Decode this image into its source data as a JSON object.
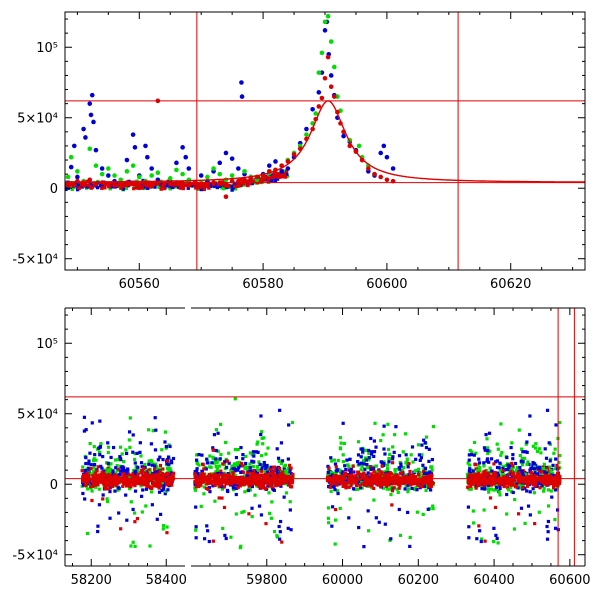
{
  "colors": {
    "blue": "#0000dd",
    "green": "#00dd00",
    "red": "#dd0000",
    "line": "#e00000"
  },
  "chart_data": [
    {
      "type": "scatter",
      "title": "",
      "xlabel": "",
      "ylabel": "",
      "xlim": [
        60548,
        60632
      ],
      "ylim": [
        -58000,
        125000
      ],
      "x_ticks": [
        {
          "value": 60560,
          "label": "60560"
        },
        {
          "value": 60580,
          "label": "60580"
        },
        {
          "value": 60600,
          "label": "60600"
        },
        {
          "value": 60620,
          "label": "60620"
        }
      ],
      "y_ticks": [
        {
          "value": -50000,
          "label": "-5×10⁴"
        },
        {
          "value": 0,
          "label": "0"
        },
        {
          "value": 50000,
          "label": "5×10⁴"
        },
        {
          "value": 100000,
          "label": "10⁵"
        }
      ],
      "ref_lines": {
        "vertical": [
          60569.3,
          60611.5
        ],
        "horizontal": [
          4000,
          62000
        ]
      },
      "fit_curve": {
        "peak_x": 60590.5,
        "peak_y": 62000,
        "baseline": 4000,
        "width": 3.5
      },
      "series": [
        {
          "color": "blue",
          "points": [
            [
              60549,
              15000
            ],
            [
              60549.5,
              30000
            ],
            [
              60550,
              8000
            ],
            [
              60551,
              42000
            ],
            [
              60551.3,
              36000
            ],
            [
              60552,
              60000
            ],
            [
              60552.2,
              52000
            ],
            [
              60552.4,
              66000
            ],
            [
              60552.6,
              47000
            ],
            [
              60553,
              27000
            ],
            [
              60554,
              14000
            ],
            [
              60555,
              9000
            ],
            [
              60556,
              5000
            ],
            [
              60558,
              20000
            ],
            [
              60559,
              38000
            ],
            [
              60559.3,
              29000
            ],
            [
              60560,
              9000
            ],
            [
              60561,
              30000
            ],
            [
              60561.3,
              22000
            ],
            [
              60562,
              14000
            ],
            [
              60563,
              6000
            ],
            [
              60565,
              5000
            ],
            [
              60566,
              18000
            ],
            [
              60567,
              29000
            ],
            [
              60567.5,
              22000
            ],
            [
              60568,
              14000
            ],
            [
              60570,
              9000
            ],
            [
              60571,
              5000
            ],
            [
              60572,
              12000
            ],
            [
              60573,
              18000
            ],
            [
              60574,
              25000
            ],
            [
              60575,
              21000
            ],
            [
              60576,
              14000
            ],
            [
              60576.5,
              75000
            ],
            [
              60576.6,
              65000
            ],
            [
              60577,
              10000
            ],
            [
              60578,
              8000
            ],
            [
              60579,
              7000
            ],
            [
              60580,
              10000
            ],
            [
              60581,
              16000
            ],
            [
              60582,
              19000
            ],
            [
              60583,
              12000
            ],
            [
              60584,
              14000
            ],
            [
              60585,
              22000
            ],
            [
              60586,
              32000
            ],
            [
              60587,
              42000
            ],
            [
              60588,
              56000
            ],
            [
              60589,
              68000
            ],
            [
              60589.5,
              82000
            ],
            [
              60590,
              112000
            ],
            [
              60590.3,
              118000
            ],
            [
              60590.6,
              95000
            ],
            [
              60591,
              80000
            ],
            [
              60591.5,
              66000
            ],
            [
              60592,
              50000
            ],
            [
              60593,
              37000
            ],
            [
              60594,
              33000
            ],
            [
              60595,
              27000
            ],
            [
              60596,
              20000
            ],
            [
              60597,
              12000
            ],
            [
              60598,
              9000
            ],
            [
              60599,
              25000
            ],
            [
              60599.5,
              30000
            ],
            [
              60600,
              22000
            ],
            [
              60601,
              14000
            ]
          ]
        },
        {
          "color": "green",
          "points": [
            [
              60548.5,
              8000
            ],
            [
              60549,
              22000
            ],
            [
              60550,
              12000
            ],
            [
              60551,
              5000
            ],
            [
              60552,
              28000
            ],
            [
              60553,
              16000
            ],
            [
              60554,
              10000
            ],
            [
              60555,
              14000
            ],
            [
              60556,
              9000
            ],
            [
              60557,
              6000
            ],
            [
              60558,
              12000
            ],
            [
              60559,
              16000
            ],
            [
              60560,
              8000
            ],
            [
              60561,
              5000
            ],
            [
              60562,
              9000
            ],
            [
              60563,
              11000
            ],
            [
              60565,
              7000
            ],
            [
              60566,
              13000
            ],
            [
              60567,
              10000
            ],
            [
              60568,
              6000
            ],
            [
              60570,
              4000
            ],
            [
              60571,
              8000
            ],
            [
              60572,
              14000
            ],
            [
              60573,
              10000
            ],
            [
              60574,
              6000
            ],
            [
              60575,
              9000
            ],
            [
              60577,
              12000
            ],
            [
              60578,
              8000
            ],
            [
              60579,
              6000
            ],
            [
              60580,
              9000
            ],
            [
              60581,
              11000
            ],
            [
              60582,
              13000
            ],
            [
              60583,
              16000
            ],
            [
              60584,
              20000
            ],
            [
              60585,
              25000
            ],
            [
              60586,
              30000
            ],
            [
              60587,
              38000
            ],
            [
              60588,
              46000
            ],
            [
              60588.5,
              53000
            ],
            [
              60589,
              82000
            ],
            [
              60589.5,
              96000
            ],
            [
              60590,
              118000
            ],
            [
              60590.5,
              122000
            ],
            [
              60591,
              104000
            ],
            [
              60591.5,
              86000
            ],
            [
              60592,
              65000
            ],
            [
              60592.5,
              55000
            ],
            [
              60593,
              40000
            ],
            [
              60594,
              34000
            ],
            [
              60595,
              26000
            ],
            [
              60595.5,
              30000
            ],
            [
              60596,
              22000
            ],
            [
              60597,
              16000
            ],
            [
              60598,
              10000
            ]
          ]
        },
        {
          "color": "red",
          "points": [
            [
              60548.5,
              2000
            ],
            [
              60549,
              3000
            ],
            [
              60550,
              5000
            ],
            [
              60551,
              4000
            ],
            [
              60552,
              6000
            ],
            [
              60553,
              3000
            ],
            [
              60554,
              4000
            ],
            [
              60555,
              3000
            ],
            [
              60556,
              2000
            ],
            [
              60557,
              3000
            ],
            [
              60558,
              4000
            ],
            [
              60559,
              3000
            ],
            [
              60560,
              2000
            ],
            [
              60561,
              4000
            ],
            [
              60562,
              3000
            ],
            [
              60563,
              62000
            ],
            [
              60564,
              3000
            ],
            [
              60565,
              3000
            ],
            [
              60566,
              4000
            ],
            [
              60567,
              3000
            ],
            [
              60568,
              2000
            ],
            [
              60569,
              4000
            ],
            [
              60570,
              3000
            ],
            [
              60571,
              3000
            ],
            [
              60572,
              4000
            ],
            [
              60573,
              4000
            ],
            [
              60574,
              -6000
            ],
            [
              60575,
              5000
            ],
            [
              60576,
              5000
            ],
            [
              60577,
              6000
            ],
            [
              60578,
              7000
            ],
            [
              60579,
              8000
            ],
            [
              60580,
              9000
            ],
            [
              60581,
              12000
            ],
            [
              60582,
              13000
            ],
            [
              60583,
              16000
            ],
            [
              60584,
              19000
            ],
            [
              60585,
              24000
            ],
            [
              60586,
              28000
            ],
            [
              60587,
              35000
            ],
            [
              60588,
              42000
            ],
            [
              60588.5,
              49000
            ],
            [
              60589,
              58000
            ],
            [
              60589.5,
              64000
            ],
            [
              60590,
              78000
            ],
            [
              60590.5,
              93000
            ],
            [
              60591,
              72000
            ],
            [
              60591.5,
              65000
            ],
            [
              60592,
              54000
            ],
            [
              60592.5,
              46000
            ],
            [
              60593,
              40000
            ],
            [
              60594,
              30000
            ],
            [
              60595,
              26000
            ],
            [
              60596,
              20000
            ],
            [
              60597,
              14000
            ],
            [
              60598,
              10000
            ],
            [
              60599,
              8000
            ],
            [
              60600,
              6000
            ],
            [
              60601,
              5000
            ]
          ]
        }
      ]
    },
    {
      "type": "scatter",
      "title": "",
      "xlabel": "",
      "ylabel": "",
      "xlim": [
        58130,
        60640
      ],
      "ylim": [
        -58000,
        125000
      ],
      "x_ticks": [
        {
          "value": 58200,
          "label": "58200"
        },
        {
          "value": 58400,
          "label": "58400"
        },
        {
          "value": 59800,
          "label": "59800"
        },
        {
          "value": 60000,
          "label": "60000"
        },
        {
          "value": 60200,
          "label": "60200"
        },
        {
          "value": 60400,
          "label": "60400"
        },
        {
          "value": 60600,
          "label": "60600"
        }
      ],
      "y_ticks": [
        {
          "value": -50000,
          "label": "-5×10⁴"
        },
        {
          "value": 0,
          "label": "0"
        },
        {
          "value": 50000,
          "label": "5×10⁴"
        },
        {
          "value": 100000,
          "label": "10⁵"
        }
      ],
      "axis_break": {
        "from": 58450,
        "to": 59600
      },
      "ref_lines": {
        "vertical": [
          60569,
          60612
        ],
        "horizontal": [
          4000,
          62000
        ]
      },
      "seasons": [
        {
          "start": 58175,
          "end": 58420
        },
        {
          "start": 59610,
          "end": 59870
        },
        {
          "start": 59960,
          "end": 60240
        },
        {
          "start": 60330,
          "end": 60575
        }
      ]
    }
  ]
}
